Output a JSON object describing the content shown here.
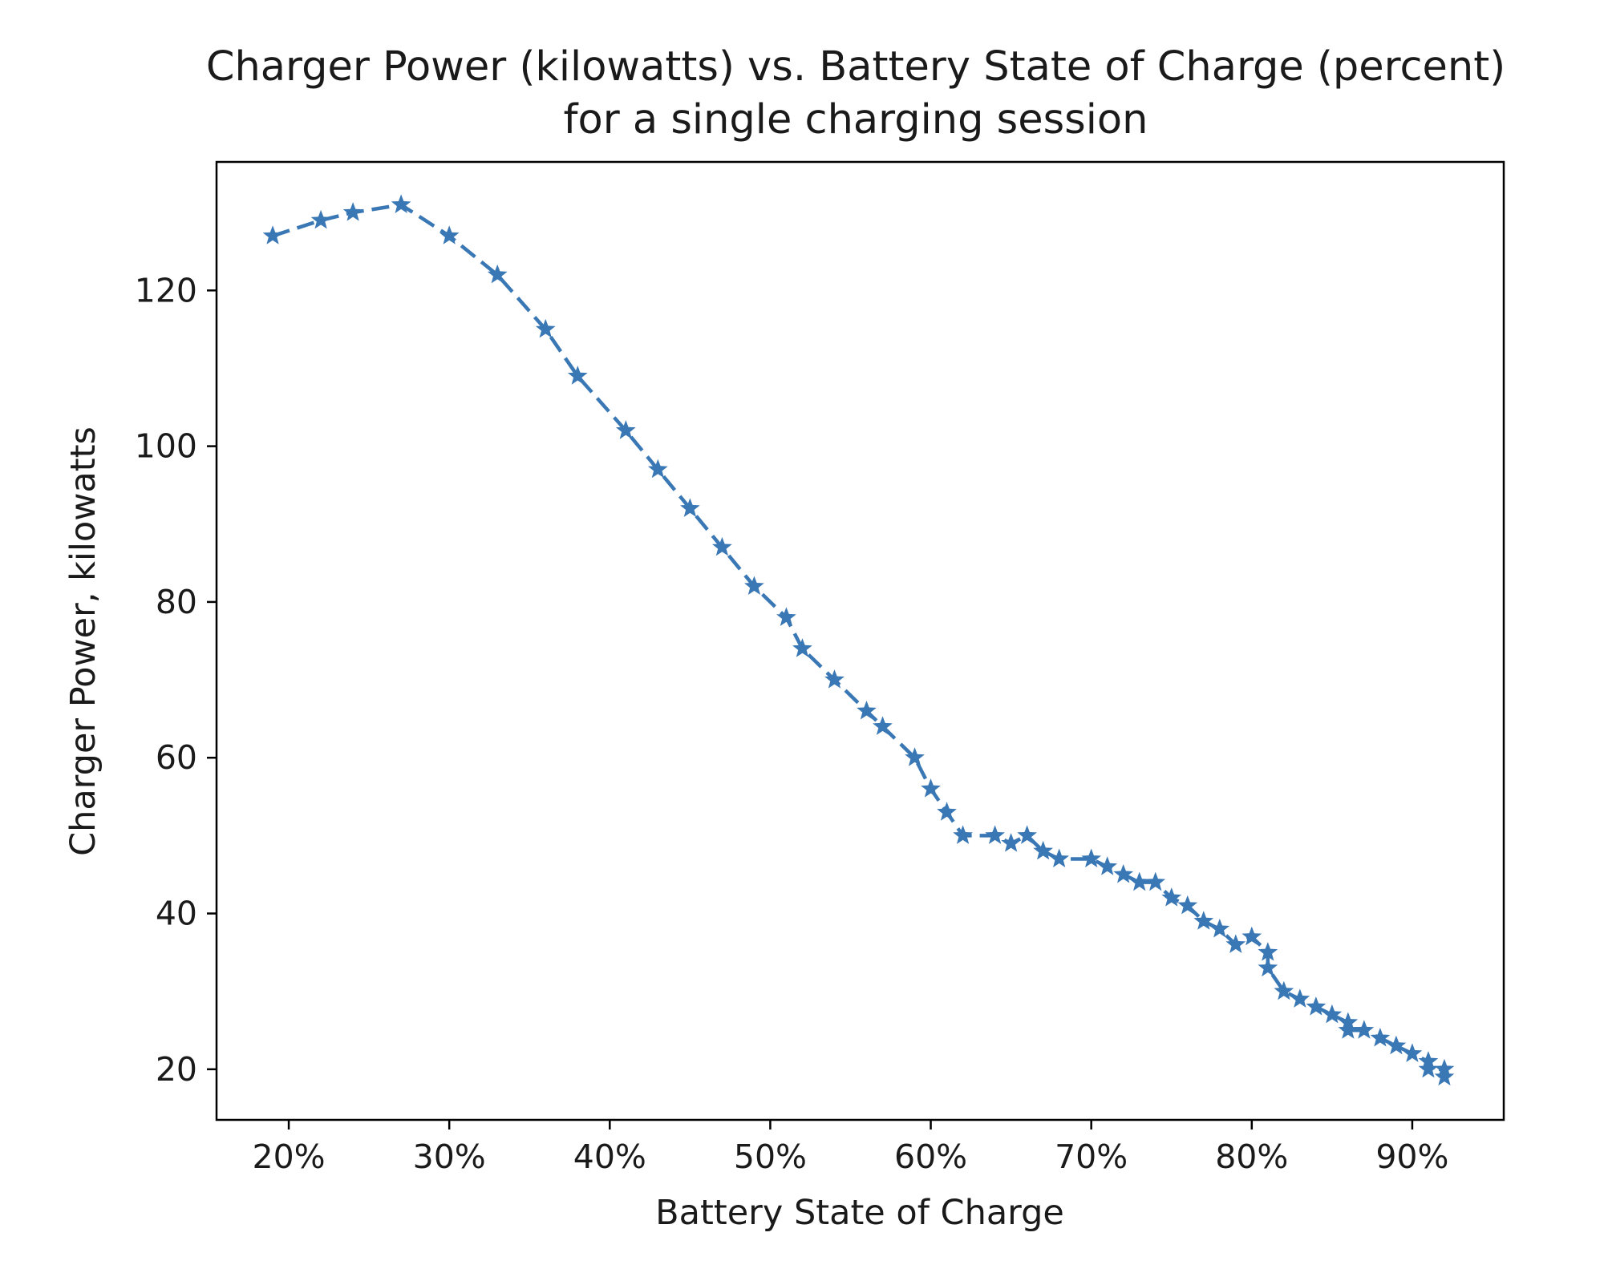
{
  "chart_data": {
    "type": "line",
    "title": "Charger Power (kilowatts) vs. Battery State of Charge (percent)",
    "subtitle": "for a single charging session",
    "xlabel": "Battery State of Charge",
    "ylabel": "Charger Power, kilowatts",
    "xlim": [
      15.5,
      95.7
    ],
    "ylim": [
      13.5,
      136.5
    ],
    "xticks": [
      20,
      30,
      40,
      50,
      60,
      70,
      80,
      90
    ],
    "xtick_labels": [
      "20%",
      "30%",
      "40%",
      "50%",
      "60%",
      "70%",
      "80%",
      "90%"
    ],
    "yticks": [
      20,
      40,
      60,
      80,
      100,
      120
    ],
    "ytick_labels": [
      "20",
      "40",
      "60",
      "80",
      "100",
      "120"
    ],
    "grid": false,
    "line_style": "dashed",
    "marker": "star",
    "color": "#3a78b5",
    "series": [
      {
        "x": [
          19,
          22,
          24,
          27,
          30,
          33,
          36,
          38,
          41,
          43,
          45,
          47,
          49,
          51,
          52,
          54,
          56,
          57,
          59,
          60,
          61,
          62,
          64,
          65,
          66,
          67,
          68,
          70,
          71,
          72,
          73,
          74,
          75,
          76,
          77,
          78,
          79,
          80,
          81,
          81,
          82,
          83,
          84,
          85,
          86,
          86,
          87,
          88,
          89,
          90,
          91,
          91,
          92,
          92
        ],
        "y": [
          127,
          129,
          130,
          131,
          127,
          122,
          115,
          109,
          102,
          97,
          92,
          87,
          82,
          78,
          74,
          70,
          66,
          64,
          60,
          56,
          53,
          50,
          50,
          49,
          50,
          48,
          47,
          47,
          46,
          45,
          44,
          44,
          42,
          41,
          39,
          38,
          36,
          37,
          35,
          33,
          30,
          29,
          28,
          27,
          26,
          25,
          25,
          24,
          23,
          22,
          21,
          20,
          20,
          19
        ]
      }
    ]
  }
}
